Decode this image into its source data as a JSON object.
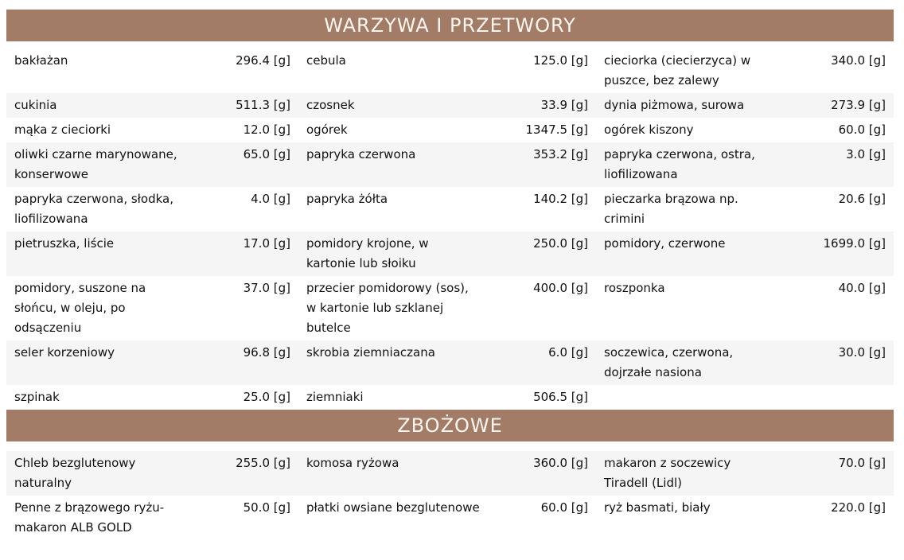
{
  "page": {
    "unit_label": "[g]",
    "sections": [
      {
        "title": "WARZYWA I PRZETWORY",
        "rows": [
          {
            "items": [
              {
                "name": "bakłażan",
                "weight": "296.4 [g]"
              },
              {
                "name": "cebula",
                "weight": "125.0 [g]"
              },
              {
                "name": "cieciorka (ciecierzyca) w\npuszce, bez zalewy",
                "weight": "340.0 [g]"
              }
            ]
          },
          {
            "items": [
              {
                "name": "cukinia",
                "weight": "511.3 [g]"
              },
              {
                "name": "czosnek",
                "weight": "33.9 [g]"
              },
              {
                "name": "dynia piżmowa, surowa",
                "weight": "273.9 [g]"
              }
            ]
          },
          {
            "items": [
              {
                "name": "mąka z cieciorki",
                "weight": "12.0 [g]"
              },
              {
                "name": "ogórek",
                "weight": "1347.5 [g]"
              },
              {
                "name": "ogórek kiszony",
                "weight": "60.0 [g]"
              }
            ]
          },
          {
            "items": [
              {
                "name": "oliwki czarne marynowane,\nkonserwowe",
                "weight": "65.0 [g]"
              },
              {
                "name": "papryka czerwona",
                "weight": "353.2 [g]"
              },
              {
                "name": "papryka czerwona, ostra,\nliofilizowana",
                "weight": "3.0 [g]"
              }
            ]
          },
          {
            "items": [
              {
                "name": "papryka czerwona, słodka,\nliofilizowana",
                "weight": "4.0 [g]"
              },
              {
                "name": "papryka żółta",
                "weight": "140.2 [g]"
              },
              {
                "name": "pieczarka brązowa np.\ncrimini",
                "weight": "20.6 [g]"
              }
            ]
          },
          {
            "items": [
              {
                "name": "pietruszka, liście",
                "weight": "17.0 [g]"
              },
              {
                "name": "pomidory krojone, w\nkartonie lub słoiku",
                "weight": "250.0 [g]"
              },
              {
                "name": "pomidory, czerwone",
                "weight": "1699.0 [g]"
              }
            ]
          },
          {
            "items": [
              {
                "name": "pomidory, suszone na\nsłońcu, w oleju, po\nodsączeniu",
                "weight": "37.0 [g]"
              },
              {
                "name": "przecier pomidorowy (sos),\nw kartonie lub szklanej\nbutelce",
                "weight": "400.0 [g]"
              },
              {
                "name": "roszponka",
                "weight": "40.0 [g]"
              }
            ]
          },
          {
            "items": [
              {
                "name": "seler korzeniowy",
                "weight": "96.8 [g]"
              },
              {
                "name": "skrobia ziemniaczana",
                "weight": "6.0 [g]"
              },
              {
                "name": "soczewica, czerwona,\ndojrzałe nasiona",
                "weight": "30.0 [g]"
              }
            ]
          },
          {
            "items": [
              {
                "name": "szpinak",
                "weight": "25.0 [g]"
              },
              {
                "name": "ziemniaki",
                "weight": "506.5 [g]"
              },
              {
                "name": "",
                "weight": ""
              }
            ]
          }
        ]
      },
      {
        "title": "ZBOŻOWE",
        "rows": [
          {
            "items": [
              {
                "name": "Chleb bezglutenowy\nnaturalny",
                "weight": "255.0 [g]"
              },
              {
                "name": "komosa ryżowa",
                "weight": "360.0 [g]"
              },
              {
                "name": "makaron z soczewicy\nTiradell (Lidl)",
                "weight": "70.0 [g]"
              }
            ]
          },
          {
            "items": [
              {
                "name": "Penne z brązowego ryżu-\nmakaron ALB GOLD",
                "weight": "50.0 [g]"
              },
              {
                "name": "płatki owsiane bezglutenowe",
                "weight": "60.0 [g]"
              },
              {
                "name": "ryż basmati, biały",
                "weight": "220.0 [g]"
              }
            ]
          }
        ]
      }
    ]
  },
  "colors": {
    "header_bg": "#a37c68",
    "header_text": "#faf5ef",
    "row_stripe": "#f5f5f5",
    "body_text": "#111111"
  }
}
